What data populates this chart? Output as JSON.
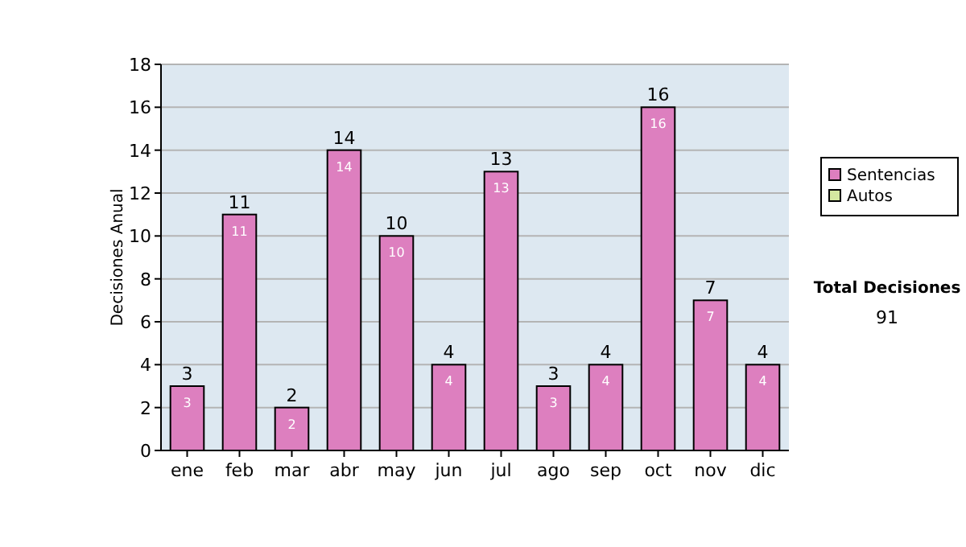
{
  "chart_data": {
    "type": "bar",
    "ylabel": "Decisiones Anual",
    "categories": [
      "ene",
      "feb",
      "mar",
      "abr",
      "may",
      "jun",
      "jul",
      "ago",
      "sep",
      "oct",
      "nov",
      "dic"
    ],
    "series": [
      {
        "name": "Sentencias",
        "color": "#dd7fbf",
        "values": [
          3,
          11,
          2,
          14,
          10,
          4,
          13,
          3,
          4,
          16,
          7,
          4
        ]
      },
      {
        "name": "Autos",
        "color": "#d4e8a0",
        "values": [
          null,
          null,
          null,
          null,
          null,
          null,
          null,
          null,
          null,
          null,
          null,
          null
        ]
      }
    ],
    "totals": [
      "3",
      "11",
      "2",
      "14",
      "10",
      "4",
      "13",
      "3",
      "4",
      "16",
      "7",
      "4"
    ],
    "ylim": [
      0,
      18
    ],
    "yticks": [
      0,
      2,
      4,
      6,
      8,
      10,
      12,
      14,
      16,
      18
    ],
    "grid": "y",
    "legend": "right",
    "data_labels": true,
    "annotations": [
      "Total Decisiones",
      "91"
    ]
  }
}
